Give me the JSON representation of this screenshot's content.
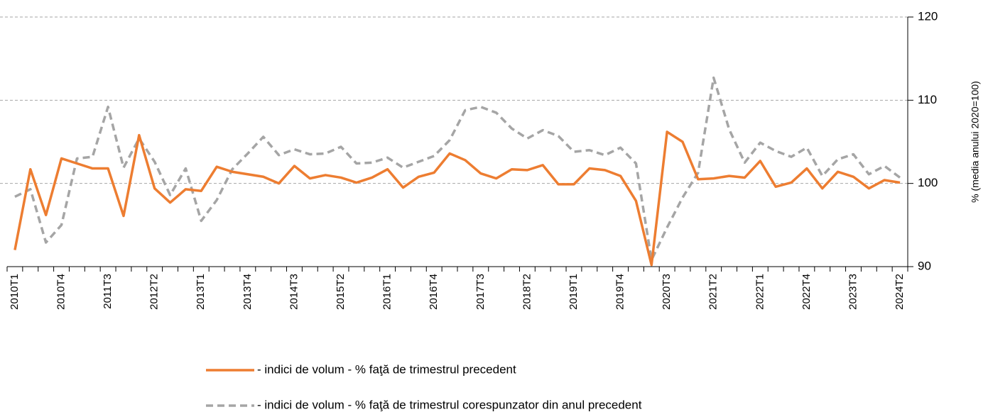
{
  "chart_data": {
    "type": "line",
    "y_axis_label": "% (media anului 2020=100)",
    "categories": [
      "2010T1",
      null,
      null,
      "2010T4",
      null,
      null,
      "2011T3",
      null,
      null,
      "2012T2",
      null,
      null,
      "2013T1",
      null,
      null,
      "2013T4",
      null,
      null,
      "2014T3",
      null,
      null,
      "2015T2",
      null,
      null,
      "2016T1",
      null,
      null,
      "2016T4",
      null,
      null,
      "2017T3",
      null,
      null,
      "2018T2",
      null,
      null,
      "2019T1",
      null,
      null,
      "2019T4",
      null,
      null,
      "2020T3",
      null,
      null,
      "2021T2",
      null,
      null,
      "2022T1",
      null,
      null,
      "2022T4",
      null,
      null,
      "2023T3",
      null,
      null,
      "2024T2"
    ],
    "series": [
      {
        "name": "- indici de volum - % faţă de trimestrul precedent",
        "color": "#ed7d31",
        "dash": "solid",
        "values": [
          92.0,
          101.7,
          96.2,
          103.0,
          102.4,
          101.8,
          101.8,
          96.1,
          105.8,
          99.4,
          97.7,
          99.3,
          99.1,
          102.0,
          101.4,
          101.1,
          100.8,
          100.0,
          102.1,
          100.6,
          101.0,
          100.7,
          100.1,
          100.7,
          101.7,
          99.5,
          100.8,
          101.3,
          103.6,
          102.8,
          101.2,
          100.6,
          101.7,
          101.6,
          102.2,
          99.9,
          99.9,
          101.8,
          101.6,
          100.9,
          97.9,
          90.2,
          106.2,
          105.0,
          100.5,
          100.6,
          100.9,
          100.7,
          102.7,
          99.6,
          100.1,
          101.8,
          99.4,
          101.4,
          100.8,
          99.4,
          100.4,
          100.1
        ]
      },
      {
        "name": "- indici de volum - % faţă de trimestrul corespunzator din anul precedent",
        "color": "#a5a5a5",
        "dash": "dashed",
        "values": [
          98.4,
          99.3,
          92.9,
          95.0,
          103.0,
          103.2,
          109.2,
          101.9,
          105.4,
          102.6,
          98.6,
          101.8,
          95.5,
          98.0,
          101.7,
          103.6,
          105.6,
          103.4,
          104.1,
          103.5,
          103.6,
          104.4,
          102.4,
          102.5,
          103.1,
          101.9,
          102.6,
          103.3,
          105.2,
          108.8,
          109.2,
          108.5,
          106.6,
          105.4,
          106.4,
          105.7,
          103.8,
          104.0,
          103.4,
          104.3,
          102.4,
          90.8,
          94.7,
          98.3,
          101.3,
          112.7,
          106.5,
          102.5,
          104.9,
          103.9,
          103.2,
          104.3,
          100.9,
          102.9,
          103.5,
          101.1,
          102.1,
          100.7
        ]
      }
    ],
    "ylim": [
      90,
      120
    ],
    "yticks": [
      90,
      100,
      110,
      120
    ],
    "grid": true,
    "y_axis_side": "right",
    "legend": "bottom"
  }
}
